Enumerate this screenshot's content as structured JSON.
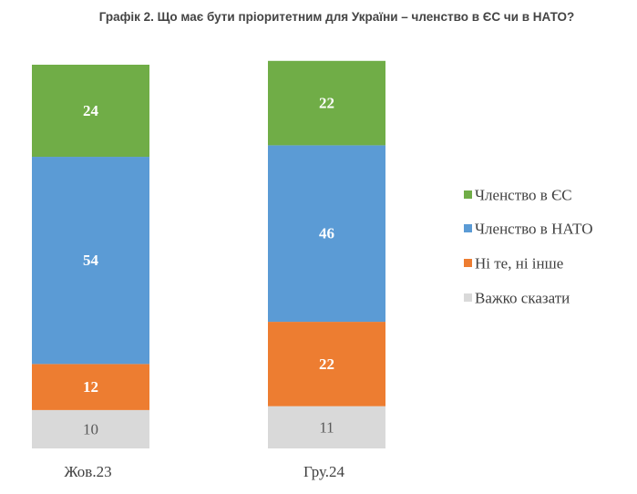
{
  "chart_data": {
    "type": "bar",
    "stacked": true,
    "title": "Графік 2. Що має бути пріоритетним для України – членство в ЄС чи в НАТО?",
    "categories": [
      "Жов.23",
      "Гру.24"
    ],
    "series": [
      {
        "name": "Важко сказати",
        "color": "#d9d9d9",
        "values": [
          10,
          11
        ]
      },
      {
        "name": "Ні те, ні інше",
        "color": "#ed7d31",
        "values": [
          12,
          22
        ]
      },
      {
        "name": "Членство в НАТО",
        "color": "#5b9bd5",
        "values": [
          54,
          46
        ]
      },
      {
        "name": "Членство в ЄС",
        "color": "#70ad47",
        "values": [
          24,
          22
        ]
      }
    ],
    "legend_order": [
      "Членство в ЄС",
      "Членство в НАТО",
      "Ні те, ні інше",
      "Важко сказати"
    ],
    "legend_position": "right",
    "xlabel": "",
    "ylabel": "",
    "ylim": [
      0,
      101
    ],
    "grid": false
  }
}
